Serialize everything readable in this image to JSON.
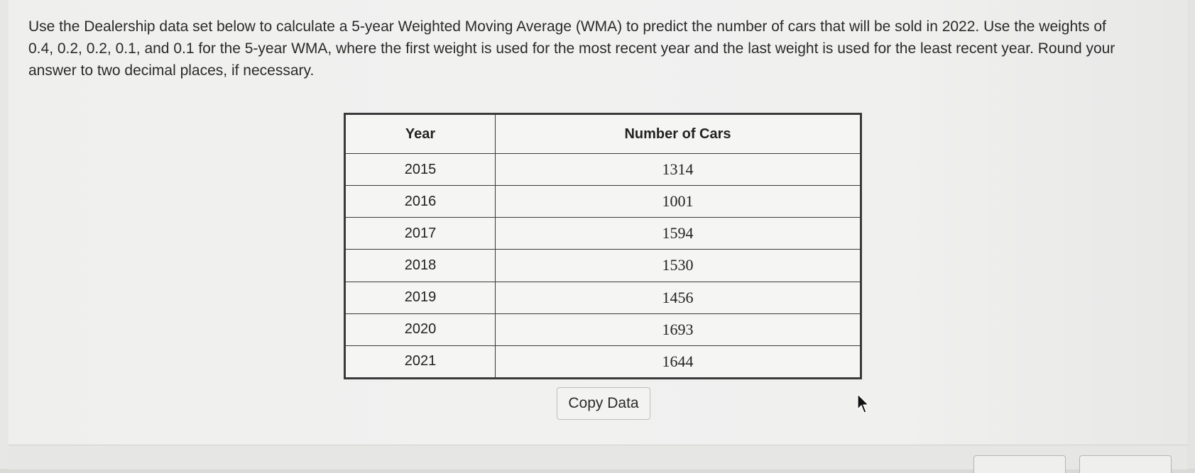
{
  "question": {
    "line1": "Use the Dealership data set below to calculate a 5-year Weighted Moving Average (WMA) to predict the number of cars that will be sold in 2022. Use the weights of",
    "line2": "0.4, 0.2, 0.2, 0.1, and 0.1 for the 5-year WMA, where the first weight is used for the most recent year and the last weight is used for the least recent year. Round your",
    "line3": "answer to two decimal places, if necessary."
  },
  "table": {
    "headers": [
      "Year",
      "Number of Cars"
    ],
    "rows": [
      [
        "2015",
        "1314"
      ],
      [
        "2016",
        "1001"
      ],
      [
        "2017",
        "1594"
      ],
      [
        "2018",
        "1530"
      ],
      [
        "2019",
        "1456"
      ],
      [
        "2020",
        "1693"
      ],
      [
        "2021",
        "1644"
      ]
    ]
  },
  "buttons": {
    "copy_data": "Copy Data"
  },
  "icons": {
    "cursor": "mouse-pointer-icon"
  }
}
